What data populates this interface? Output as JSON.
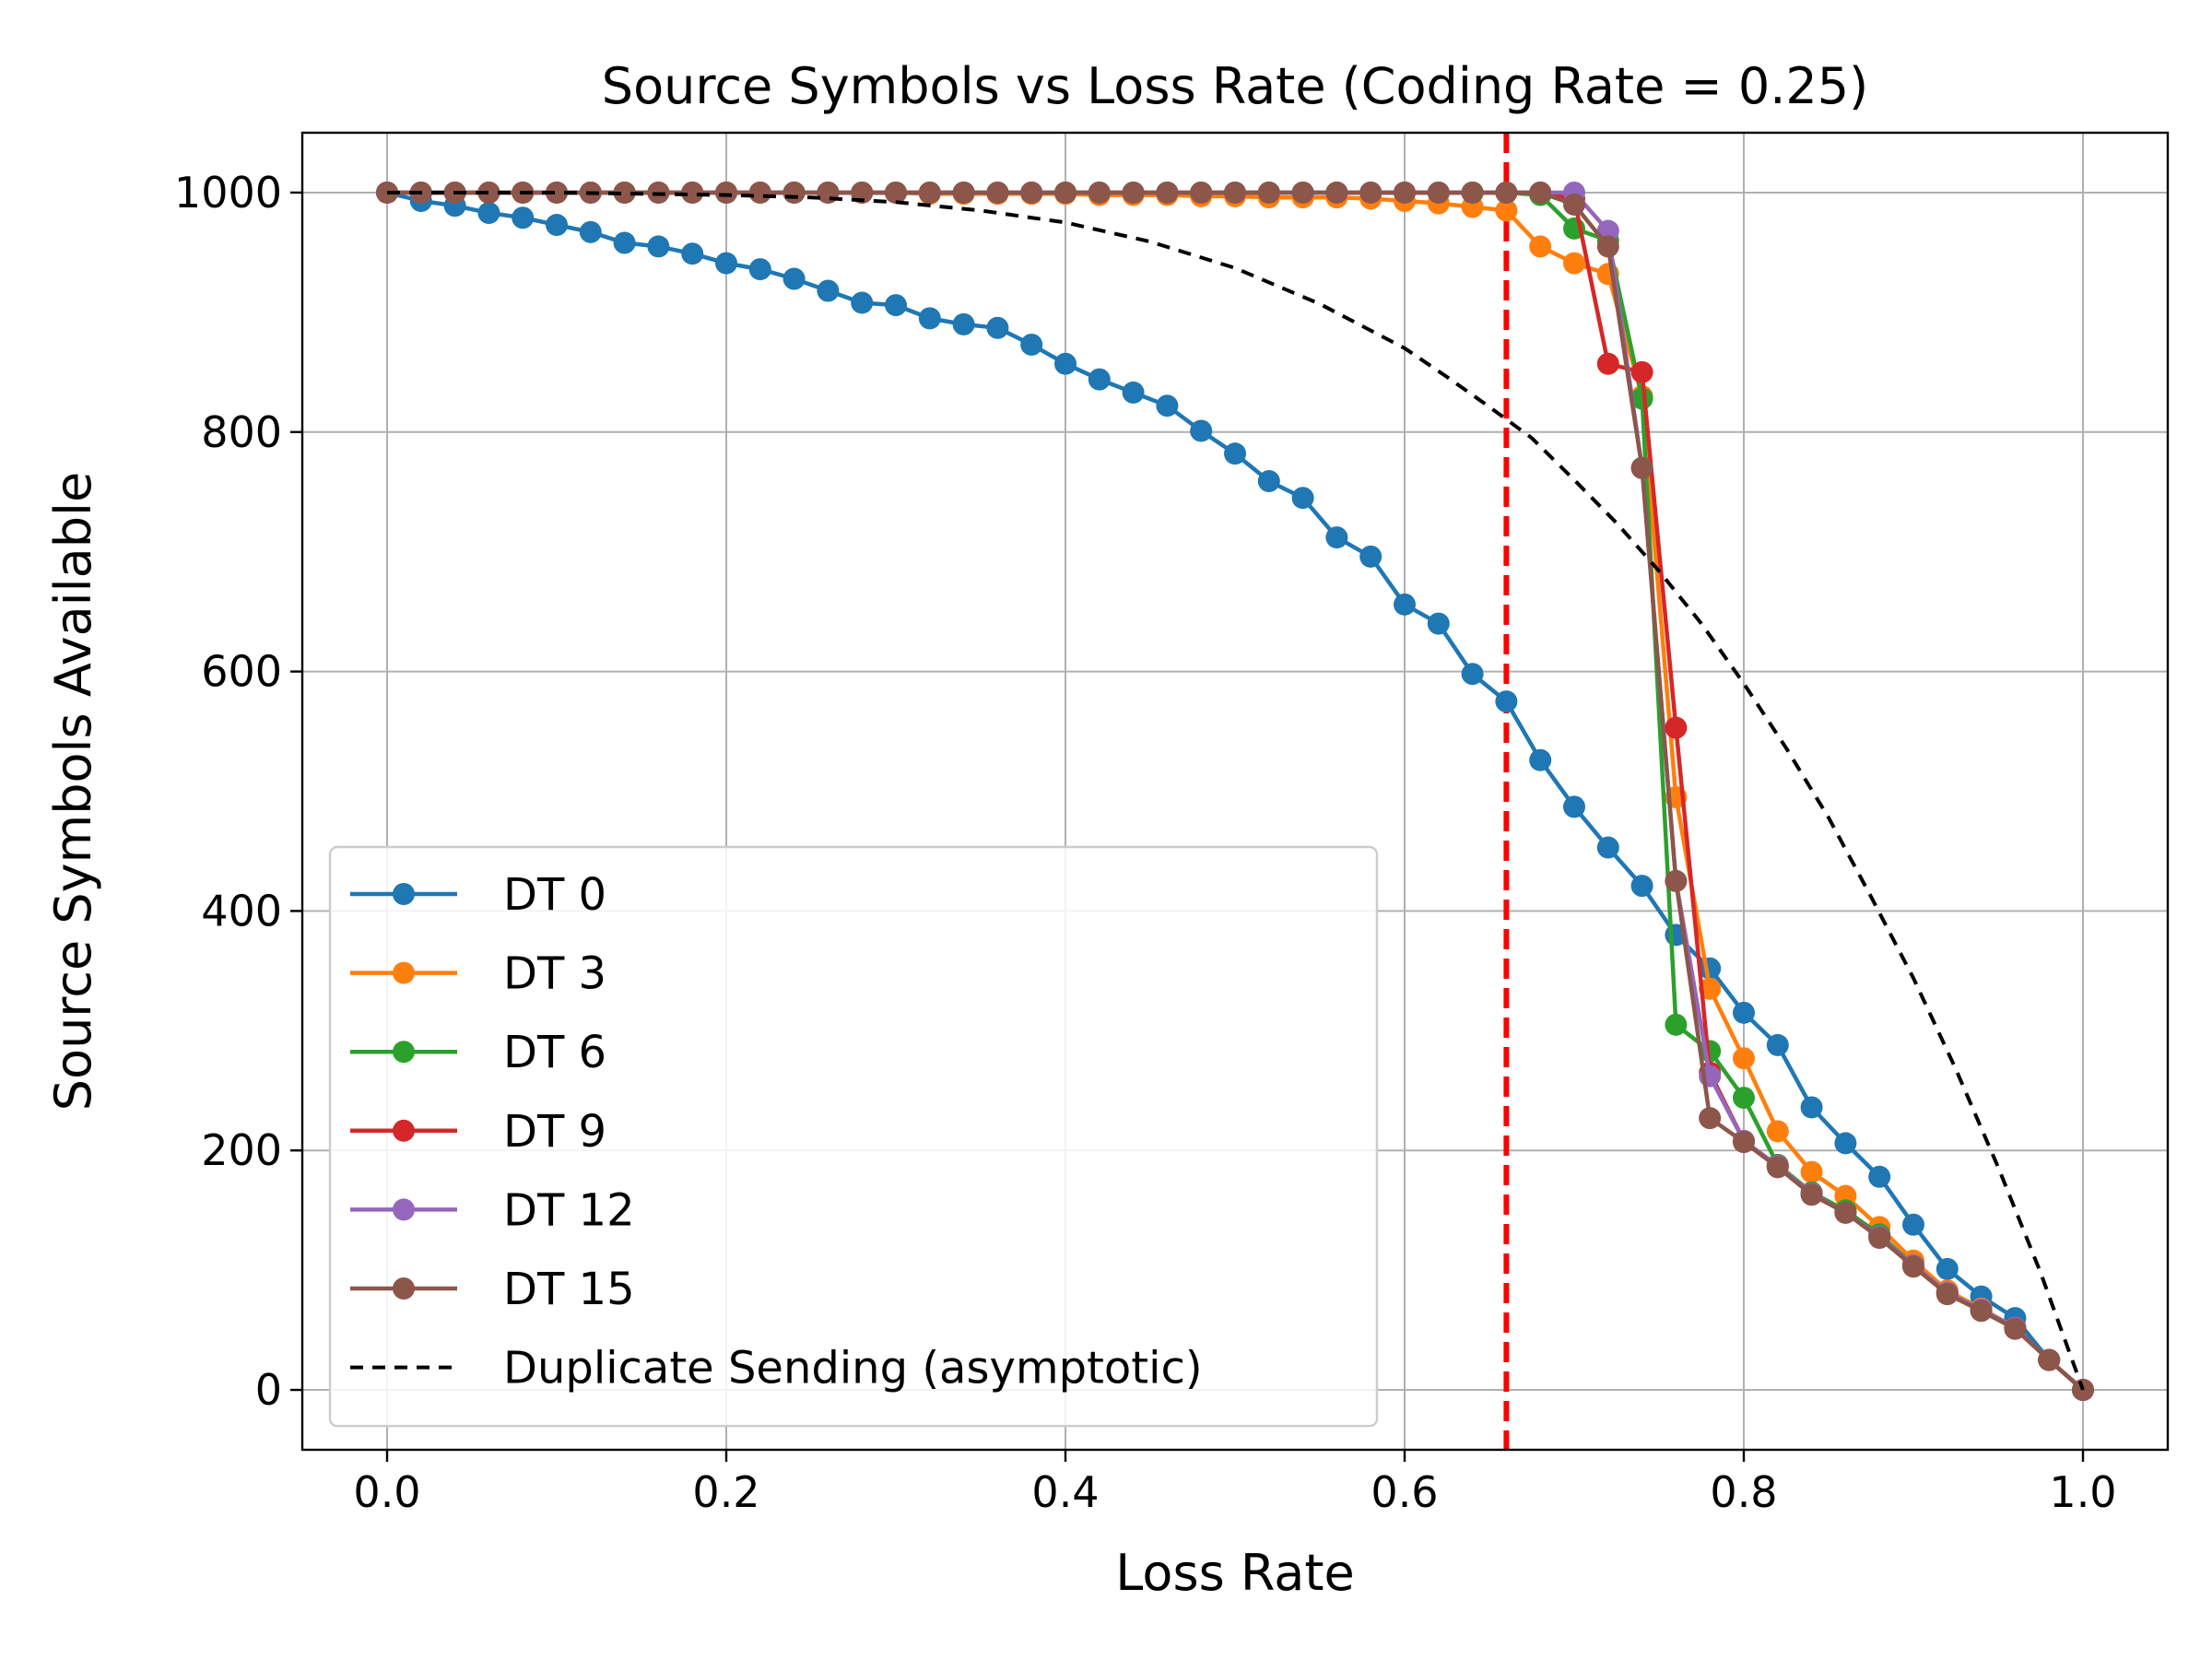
{
  "chart_data": {
    "type": "line",
    "title": "Source Symbols vs Loss Rate (Coding Rate = 0.25)",
    "xlabel": "Loss Rate",
    "ylabel": "Source Symbols Available",
    "xlim": [
      -0.05,
      1.05
    ],
    "ylim": [
      -50,
      1050
    ],
    "xticks": [
      0.0,
      0.2,
      0.4,
      0.6,
      0.8,
      1.0
    ],
    "xtick_labels": [
      "0.0",
      "0.2",
      "0.4",
      "0.6",
      "0.8",
      "1.0"
    ],
    "yticks": [
      0,
      200,
      400,
      600,
      800,
      1000
    ],
    "ytick_labels": [
      "0",
      "200",
      "400",
      "600",
      "800",
      "1000"
    ],
    "grid": true,
    "legend_position": "lower-left",
    "vline": {
      "x": 0.66,
      "color": "#ff0000",
      "style": "dashed"
    },
    "series": [
      {
        "name": "DT 0",
        "color": "#1f77b4",
        "x": [
          0.0,
          0.02,
          0.04,
          0.06,
          0.08,
          0.1,
          0.12,
          0.14,
          0.16,
          0.18,
          0.2,
          0.22,
          0.24,
          0.26,
          0.28,
          0.3,
          0.32,
          0.34,
          0.36,
          0.38,
          0.4,
          0.42,
          0.44,
          0.46,
          0.48,
          0.5,
          0.52,
          0.54,
          0.56,
          0.58,
          0.6,
          0.62,
          0.64,
          0.66,
          0.68,
          0.7,
          0.72,
          0.74,
          0.76,
          0.78,
          0.8,
          0.82,
          0.84,
          0.86,
          0.88,
          0.9,
          0.92,
          0.94,
          0.96,
          0.98,
          1.0
        ],
        "y": [
          1000,
          993,
          989,
          983,
          979,
          973,
          967,
          958,
          955,
          949,
          941,
          936,
          928,
          918,
          908,
          906,
          895,
          890,
          887,
          873,
          857,
          844,
          833,
          822,
          801,
          782,
          759,
          745,
          712,
          696,
          656,
          640,
          598,
          575,
          526,
          487,
          453,
          421,
          380,
          352,
          315,
          288,
          236,
          206,
          178,
          138,
          101,
          78,
          60,
          25,
          0
        ]
      },
      {
        "name": "DT 3",
        "color": "#ff7f0e",
        "x": [
          0.0,
          0.02,
          0.04,
          0.06,
          0.08,
          0.1,
          0.12,
          0.14,
          0.16,
          0.18,
          0.2,
          0.22,
          0.24,
          0.26,
          0.28,
          0.3,
          0.32,
          0.34,
          0.36,
          0.38,
          0.4,
          0.42,
          0.44,
          0.46,
          0.48,
          0.5,
          0.52,
          0.54,
          0.56,
          0.58,
          0.6,
          0.62,
          0.64,
          0.66,
          0.68,
          0.7,
          0.72,
          0.74,
          0.76,
          0.78,
          0.8,
          0.82,
          0.84,
          0.86,
          0.88,
          0.9,
          0.92,
          0.94,
          0.96,
          0.98,
          1.0
        ],
        "y": [
          1000,
          1000,
          1000,
          1000,
          1000,
          1000,
          1000,
          1000,
          1000,
          1000,
          1000,
          1000,
          1000,
          1000,
          1000,
          1000,
          999,
          999,
          999,
          999,
          999,
          998,
          998,
          998,
          997,
          997,
          996,
          996,
          996,
          995,
          993,
          991,
          988,
          985,
          955,
          941,
          932,
          830,
          495,
          335,
          277,
          216,
          182,
          162,
          136,
          108,
          83,
          68,
          52,
          25,
          0
        ]
      },
      {
        "name": "DT 6",
        "color": "#2ca02c",
        "x": [
          0.0,
          0.02,
          0.04,
          0.06,
          0.08,
          0.1,
          0.12,
          0.14,
          0.16,
          0.18,
          0.2,
          0.22,
          0.24,
          0.26,
          0.28,
          0.3,
          0.32,
          0.34,
          0.36,
          0.38,
          0.4,
          0.42,
          0.44,
          0.46,
          0.48,
          0.5,
          0.52,
          0.54,
          0.56,
          0.58,
          0.6,
          0.62,
          0.64,
          0.66,
          0.68,
          0.7,
          0.72,
          0.74,
          0.76,
          0.78,
          0.8,
          0.82,
          0.84,
          0.86,
          0.88,
          0.9,
          0.92,
          0.94,
          0.96,
          0.98,
          1.0
        ],
        "y": [
          1000,
          1000,
          1000,
          1000,
          1000,
          1000,
          1000,
          1000,
          1000,
          1000,
          1000,
          1000,
          1000,
          1000,
          1000,
          1000,
          1000,
          1000,
          1000,
          1000,
          1000,
          1000,
          1000,
          1000,
          1000,
          1000,
          1000,
          1000,
          1000,
          1000,
          1000,
          1000,
          1000,
          1000,
          998,
          970,
          960,
          828,
          305,
          283,
          244,
          188,
          165,
          150,
          130,
          104,
          81,
          67,
          52,
          25,
          0
        ]
      },
      {
        "name": "DT 9",
        "color": "#d62728",
        "x": [
          0.0,
          0.02,
          0.04,
          0.06,
          0.08,
          0.1,
          0.12,
          0.14,
          0.16,
          0.18,
          0.2,
          0.22,
          0.24,
          0.26,
          0.28,
          0.3,
          0.32,
          0.34,
          0.36,
          0.38,
          0.4,
          0.42,
          0.44,
          0.46,
          0.48,
          0.5,
          0.52,
          0.54,
          0.56,
          0.58,
          0.6,
          0.62,
          0.64,
          0.66,
          0.68,
          0.7,
          0.72,
          0.74,
          0.76,
          0.78,
          0.8,
          0.82,
          0.84,
          0.86,
          0.88,
          0.9,
          0.92,
          0.94,
          0.96,
          0.98,
          1.0
        ],
        "y": [
          1000,
          1000,
          1000,
          1000,
          1000,
          1000,
          1000,
          1000,
          1000,
          1000,
          1000,
          1000,
          1000,
          1000,
          1000,
          1000,
          1000,
          1000,
          1000,
          1000,
          1000,
          1000,
          1000,
          1000,
          1000,
          1000,
          1000,
          1000,
          1000,
          1000,
          1000,
          1000,
          1000,
          1000,
          1000,
          995,
          857,
          850,
          553,
          265,
          208,
          187,
          164,
          148,
          128,
          104,
          81,
          67,
          52,
          25,
          0
        ]
      },
      {
        "name": "DT 12",
        "color": "#9467bd",
        "x": [
          0.0,
          0.02,
          0.04,
          0.06,
          0.08,
          0.1,
          0.12,
          0.14,
          0.16,
          0.18,
          0.2,
          0.22,
          0.24,
          0.26,
          0.28,
          0.3,
          0.32,
          0.34,
          0.36,
          0.38,
          0.4,
          0.42,
          0.44,
          0.46,
          0.48,
          0.5,
          0.52,
          0.54,
          0.56,
          0.58,
          0.6,
          0.62,
          0.64,
          0.66,
          0.68,
          0.7,
          0.72,
          0.74,
          0.76,
          0.78,
          0.8,
          0.82,
          0.84,
          0.86,
          0.88,
          0.9,
          0.92,
          0.94,
          0.96,
          0.98,
          1.0
        ],
        "y": [
          1000,
          1000,
          1000,
          1000,
          1000,
          1000,
          1000,
          1000,
          1000,
          1000,
          1000,
          1000,
          1000,
          1000,
          1000,
          1000,
          1000,
          1000,
          1000,
          1000,
          1000,
          1000,
          1000,
          1000,
          1000,
          1000,
          1000,
          1000,
          1000,
          1000,
          1000,
          1000,
          1000,
          1000,
          1000,
          1000,
          968,
          770,
          425,
          262,
          208,
          187,
          164,
          148,
          128,
          104,
          81,
          67,
          52,
          25,
          0
        ]
      },
      {
        "name": "DT 15",
        "color": "#8c564b",
        "x": [
          0.0,
          0.02,
          0.04,
          0.06,
          0.08,
          0.1,
          0.12,
          0.14,
          0.16,
          0.18,
          0.2,
          0.22,
          0.24,
          0.26,
          0.28,
          0.3,
          0.32,
          0.34,
          0.36,
          0.38,
          0.4,
          0.42,
          0.44,
          0.46,
          0.48,
          0.5,
          0.52,
          0.54,
          0.56,
          0.58,
          0.6,
          0.62,
          0.64,
          0.66,
          0.68,
          0.7,
          0.72,
          0.74,
          0.76,
          0.78,
          0.8,
          0.82,
          0.84,
          0.86,
          0.88,
          0.9,
          0.92,
          0.94,
          0.96,
          0.98,
          1.0
        ],
        "y": [
          1000,
          1000,
          1000,
          1000,
          1000,
          1000,
          1000,
          1000,
          1000,
          1000,
          1000,
          1000,
          1000,
          1000,
          1000,
          1000,
          1000,
          1000,
          1000,
          1000,
          1000,
          1000,
          1000,
          1000,
          1000,
          1000,
          1000,
          1000,
          1000,
          1000,
          1000,
          1000,
          1000,
          1000,
          1000,
          990,
          955,
          770,
          425,
          227,
          207,
          186,
          163,
          148,
          127,
          103,
          80,
          66,
          51,
          25,
          0
        ]
      },
      {
        "name": "Duplicate Sending (asymptotic)",
        "color": "#000000",
        "style": "dashed",
        "markers": false,
        "x": [
          0.0,
          0.05,
          0.1,
          0.15,
          0.2,
          0.25,
          0.3,
          0.35,
          0.4,
          0.45,
          0.5,
          0.55,
          0.6,
          0.625,
          0.65,
          0.675,
          0.7,
          0.725,
          0.75,
          0.775,
          0.8,
          0.825,
          0.85,
          0.875,
          0.9,
          0.925,
          0.95,
          0.975,
          1.0
        ],
        "y": [
          1000,
          1000,
          1000,
          999,
          998,
          996,
          992,
          985,
          975,
          959,
          937,
          907,
          870,
          846,
          821,
          795,
          760,
          724,
          684,
          640,
          590,
          536,
          478,
          412,
          344,
          268,
          186,
          98,
          0
        ]
      }
    ]
  }
}
